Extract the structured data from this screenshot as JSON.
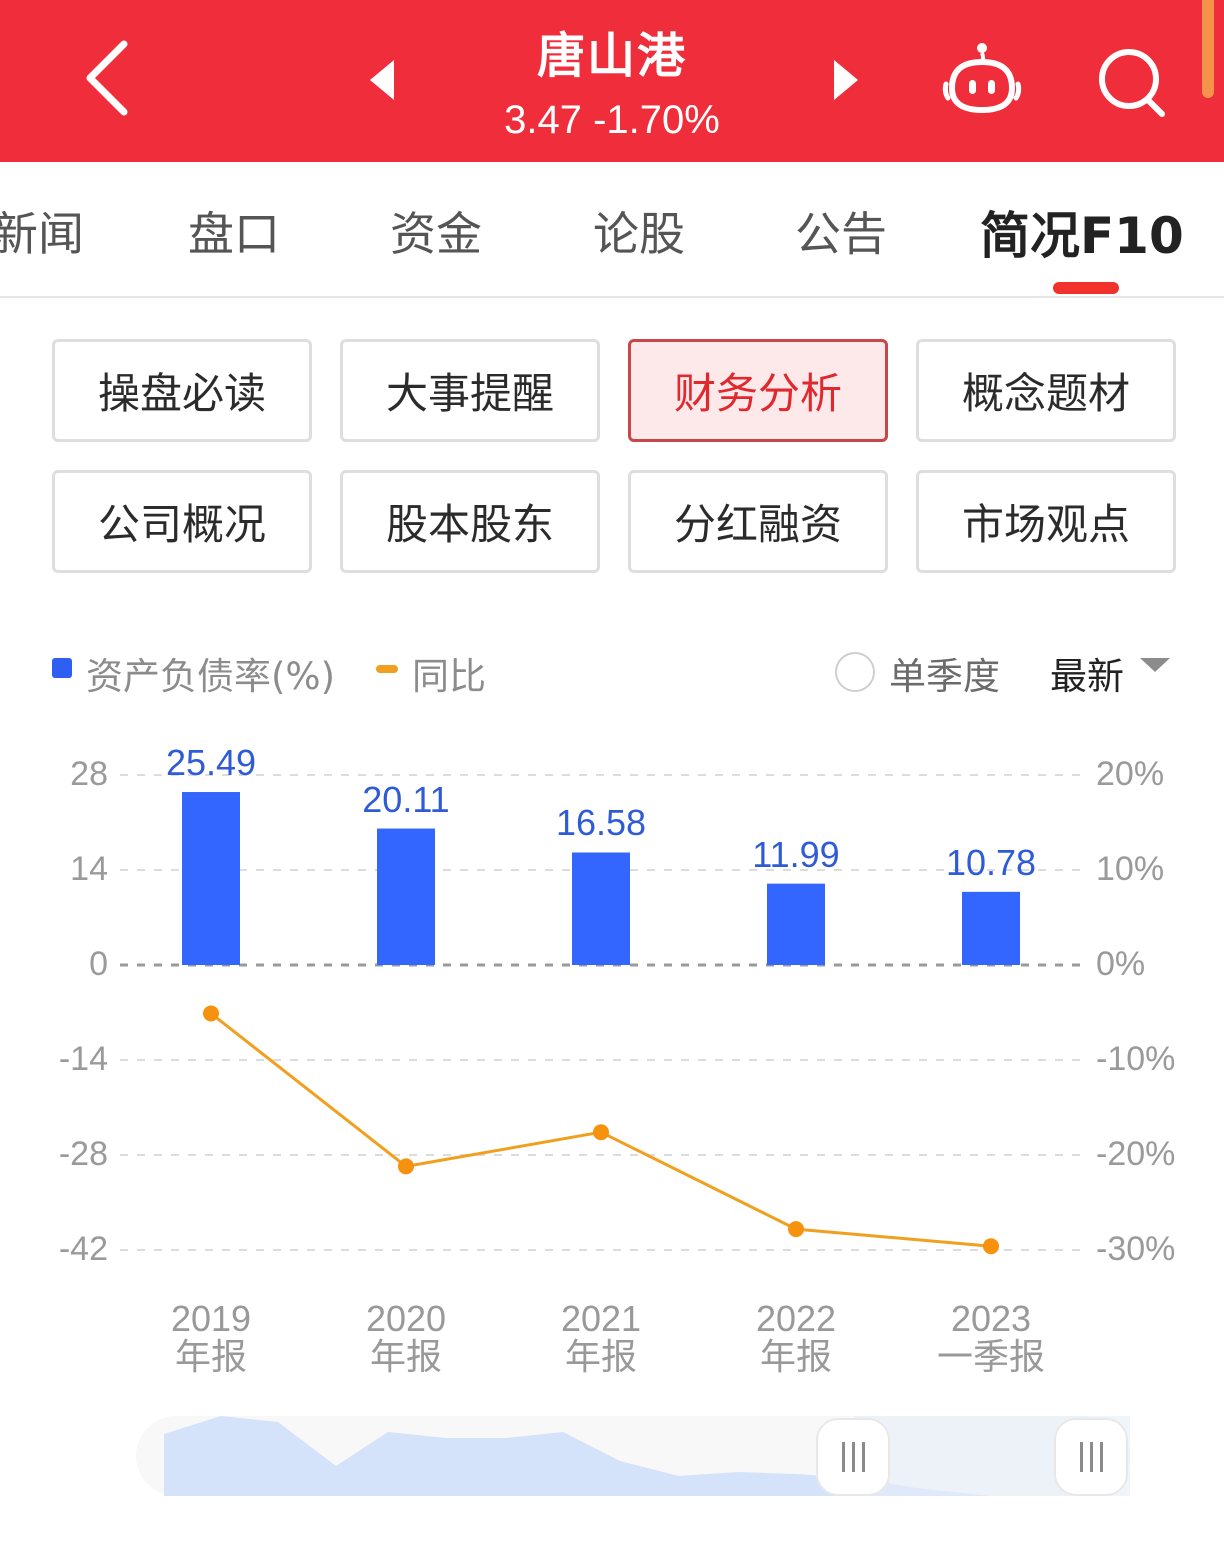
{
  "header": {
    "title": "唐山港",
    "price": "3.47",
    "change_pct": "-1.70%",
    "quote": "3.47 -1.70%",
    "icons": [
      "back-chevron-icon",
      "prev-stock-triangle-icon",
      "next-stock-triangle-icon",
      "robot-assistant-icon",
      "search-icon"
    ],
    "bg_color": "#f02e3b"
  },
  "tabs": [
    {
      "label": "新闻",
      "active": false
    },
    {
      "label": "盘口",
      "active": false
    },
    {
      "label": "资金",
      "active": false
    },
    {
      "label": "论股",
      "active": false
    },
    {
      "label": "公告",
      "active": false
    },
    {
      "label": "简况F10",
      "active": true
    }
  ],
  "sections": [
    {
      "label": "操盘必读",
      "active": false
    },
    {
      "label": "大事提醒",
      "active": false
    },
    {
      "label": "财务分析",
      "active": true
    },
    {
      "label": "概念题材",
      "active": false
    },
    {
      "label": "公司概况",
      "active": false
    },
    {
      "label": "股本股东",
      "active": false
    },
    {
      "label": "分红融资",
      "active": false
    },
    {
      "label": "市场观点",
      "active": false
    }
  ],
  "controls": {
    "legend_bar": "资产负债率(%)",
    "legend_line": "同比",
    "single_quarter_label": "单季度",
    "single_quarter_checked": false,
    "period_select": "最新"
  },
  "chart_data": {
    "type": "bar",
    "title": "资产负债率(%)",
    "categories": [
      "2019 年报",
      "2020 年报",
      "2021 年报",
      "2022 年报",
      "2023 一季报"
    ],
    "x_labels": [
      {
        "year": "2019",
        "period": "年报"
      },
      {
        "year": "2020",
        "period": "年报"
      },
      {
        "year": "2021",
        "period": "年报"
      },
      {
        "year": "2022",
        "period": "年报"
      },
      {
        "year": "2023",
        "period": "一季报"
      }
    ],
    "series": [
      {
        "name": "资产负债率(%)",
        "type": "bar",
        "axis": "left",
        "color": "#3366ff",
        "values": [
          25.49,
          20.11,
          16.58,
          11.99,
          10.78
        ]
      },
      {
        "name": "同比",
        "type": "line",
        "axis": "right",
        "color": "#f0a01e",
        "values": [
          -5.1,
          -21.2,
          -17.6,
          -27.8,
          -29.6
        ],
        "unit": "%"
      }
    ],
    "bar_labels": [
      "25.49",
      "20.11",
      "16.58",
      "11.99",
      "10.78"
    ],
    "left_axis": {
      "ticks": [
        "28",
        "14",
        "0",
        "-14",
        "-28",
        "-42"
      ],
      "range": [
        -42,
        28
      ]
    },
    "right_axis": {
      "ticks": [
        "20%",
        "10%",
        "0%",
        "-10%",
        "-20%",
        "-30%"
      ],
      "range": [
        -30,
        20
      ]
    },
    "grid": "dashed horizontal",
    "legend_position": "top-left"
  },
  "slider": {
    "range_start_pct": 69,
    "range_end_pct": 100
  }
}
